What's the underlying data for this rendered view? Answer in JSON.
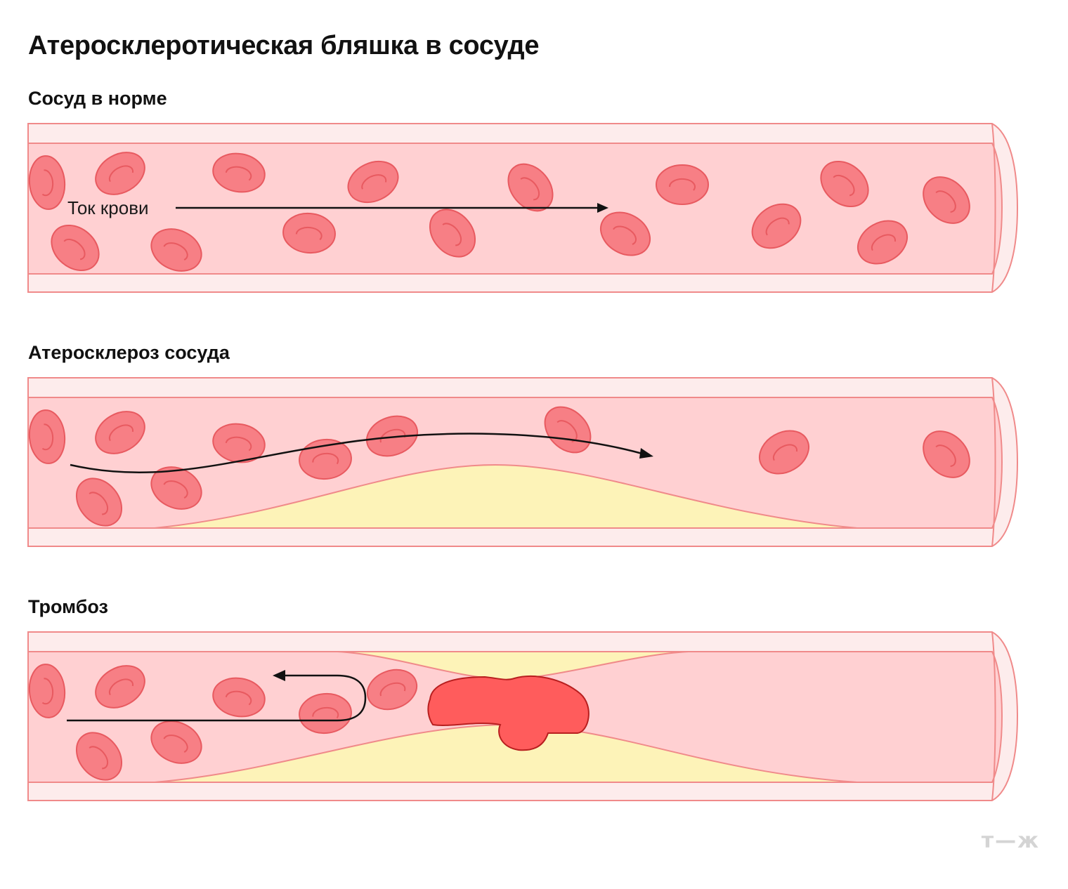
{
  "title": "Атеросклеротическая бляшка в сосуде",
  "sections": [
    {
      "title": "Сосуд в норме",
      "flow_label": "Ток крови"
    },
    {
      "title": "Атеросклероз сосуда"
    },
    {
      "title": "Тромбоз"
    }
  ],
  "logo": "т—ж",
  "colors": {
    "vessel_wall": "#fdecec",
    "vessel_outline": "#f08a8a",
    "lumen": "#ffd0d2",
    "blood_cell": "#f77f85",
    "blood_cell_outline": "#e85a60",
    "plaque": "#fdf3b8",
    "thrombus": "#ff5c5c",
    "thrombus_outline": "#b81f1f",
    "arrow": "#111111"
  }
}
